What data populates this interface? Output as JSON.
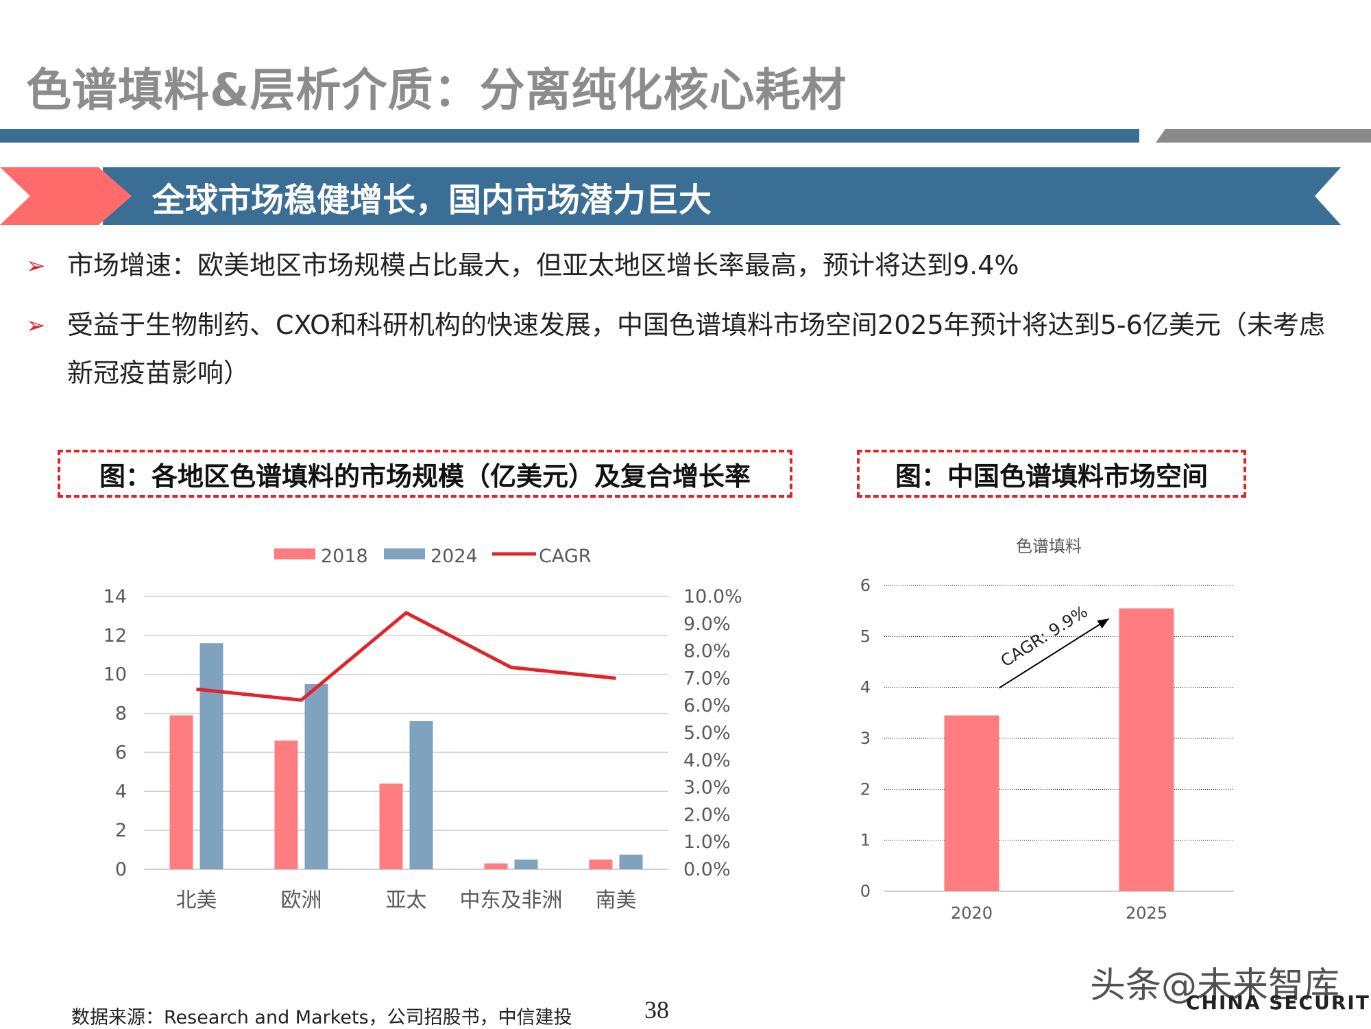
{
  "page": {
    "title": "色谱填料&层析介质：分离纯化核心耗材",
    "banner": "全球市场稳健增长，国内市场潜力巨大",
    "bullets": [
      "市场增速：欧美地区市场规模占比最大，但亚太地区增长率最高，预计将达到9.4%",
      "受益于生物制药、CXO和科研机构的快速发展，中国色谱填料市场空间2025年预计将达到5-6亿美元（未考虑新冠疫苗影响）"
    ],
    "source": "数据来源：Research and Markets，公司招股书，中信建投",
    "page_number": "38",
    "watermark": "头条@未来智库",
    "watermark_sub": "CHINA SECURITIES"
  },
  "figures": {
    "left_title": "图：各地区色谱填料的市场规模（亿美元）及复合增长率",
    "right_title": "图：中国色谱填料市场空间"
  },
  "colors": {
    "bar_2018": "#ff7c80",
    "bar_2024": "#7fa2be",
    "cagr_line": "#e0242a",
    "bar_china": "#ff7c80",
    "accent_blue": "#3b6e94",
    "accent_red": "#ff6b6b"
  },
  "chart_data": [
    {
      "type": "bar",
      "categories": [
        "北美",
        "欧洲",
        "亚太",
        "中东及非洲",
        "南美"
      ],
      "series": [
        {
          "name": "2018",
          "type": "bar",
          "values": [
            7.9,
            6.6,
            4.4,
            0.3,
            0.5
          ]
        },
        {
          "name": "2024",
          "type": "bar",
          "values": [
            11.6,
            9.5,
            7.6,
            0.5,
            0.75
          ]
        },
        {
          "name": "CAGR",
          "type": "line",
          "axis": "secondary",
          "values": [
            6.6,
            6.2,
            9.4,
            7.4,
            7.0
          ]
        }
      ],
      "ylim": [
        0,
        14
      ],
      "yticks": [
        "0",
        "2",
        "4",
        "6",
        "8",
        "10",
        "12",
        "14"
      ],
      "y2lim": [
        0,
        10
      ],
      "y2ticks": [
        "0.0%",
        "1.0%",
        "2.0%",
        "3.0%",
        "4.0%",
        "5.0%",
        "6.0%",
        "7.0%",
        "8.0%",
        "9.0%",
        "10.0%"
      ],
      "legend": "top",
      "grid": true
    },
    {
      "type": "bar",
      "title": "色谱填料",
      "categories": [
        "2020",
        "2025"
      ],
      "values": [
        3.45,
        5.55
      ],
      "ylim": [
        0,
        6
      ],
      "yticks": [
        "0",
        "1",
        "2",
        "3",
        "4",
        "5",
        "6"
      ],
      "annotation": "CAGR: 9.9%",
      "grid": true
    }
  ]
}
